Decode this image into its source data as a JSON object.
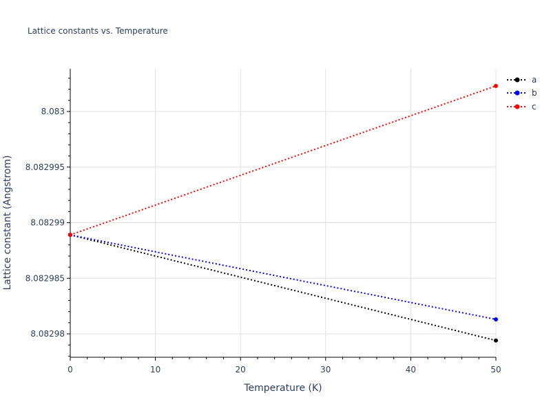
{
  "title": "Lattice constants vs. Temperature",
  "chart_data": {
    "type": "line",
    "title": "Lattice constants vs. Temperature",
    "xlabel": "Temperature (K)",
    "ylabel": "Lattice constant (Angstrom)",
    "x": [
      0,
      50
    ],
    "xlim": [
      0,
      50
    ],
    "ylim": [
      8.0829788,
      8.0830038
    ],
    "xticks": [
      0,
      10,
      20,
      30,
      40,
      50
    ],
    "yticks": [
      8.08298,
      8.082985,
      8.08299,
      8.082995,
      8.083
    ],
    "ytick_labels": [
      "8.08298",
      "8.082985",
      "8.08299",
      "8.082995",
      "8.083"
    ],
    "grid": true,
    "legend_position": "top-right outside",
    "series": [
      {
        "name": "a",
        "color": "#000000",
        "values": [
          8.0829889,
          8.0829794
        ]
      },
      {
        "name": "b",
        "color": "#0000ff",
        "values": [
          8.0829889,
          8.0829813
        ]
      },
      {
        "name": "c",
        "color": "#ff0000",
        "values": [
          8.0829889,
          8.0830023
        ]
      }
    ]
  }
}
